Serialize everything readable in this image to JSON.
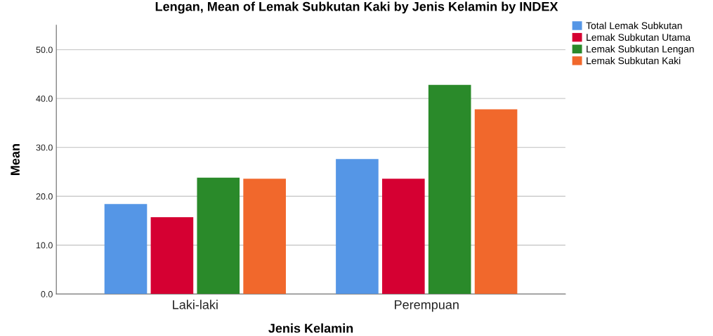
{
  "chart_data": {
    "type": "bar",
    "title": "Lengan, Mean of Lemak Subkutan Kaki by Jenis Kelamin by INDEX",
    "xlabel": "Jenis Kelamin",
    "ylabel": "Mean",
    "categories": [
      "Laki-laki",
      "Perempuan"
    ],
    "series": [
      {
        "name": "Total Lemak Subkutan",
        "color": "#5596e6",
        "values": [
          18.4,
          27.6
        ]
      },
      {
        "name": "Lemak Subkutan Utama",
        "color": "#d50032",
        "values": [
          15.7,
          23.6
        ]
      },
      {
        "name": "Lemak Subkutan Lengan",
        "color": "#2a8a2a",
        "values": [
          23.8,
          42.8
        ]
      },
      {
        "name": "Lemak Subkutan Kaki",
        "color": "#f1682c",
        "values": [
          23.6,
          37.8
        ]
      }
    ],
    "ylim": [
      0,
      55
    ],
    "yticks": [
      {
        "value": 0,
        "label": "0.0"
      },
      {
        "value": 10,
        "label": "10.0"
      },
      {
        "value": 20,
        "label": "20.0"
      },
      {
        "value": 30,
        "label": "30.0"
      },
      {
        "value": 40,
        "label": "40.0"
      },
      {
        "value": 50,
        "label": "50.0"
      }
    ],
    "grid": "y",
    "legend": "top right"
  }
}
